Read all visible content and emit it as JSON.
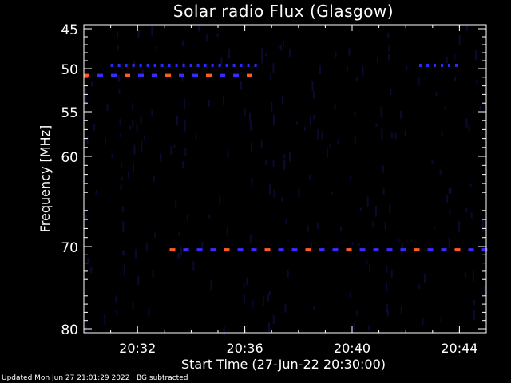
{
  "chart_data": {
    "type": "heatmap",
    "title": "Solar radio Flux (Glasgow)",
    "xlabel": "Start Time (27-Jun-22 20:30:00)",
    "ylabel": "Frequency [MHz]",
    "x_start_minutes": 0,
    "x_end_minutes": 15,
    "x_ticks": [
      {
        "minute": 2,
        "label": "20:32"
      },
      {
        "minute": 6,
        "label": "20:36"
      },
      {
        "minute": 10,
        "label": "20:40"
      },
      {
        "minute": 14,
        "label": "20:44"
      }
    ],
    "ylim": [
      45,
      80
    ],
    "y_ticks": [
      {
        "mhz": 45,
        "label": "45"
      },
      {
        "mhz": 50,
        "label": "50"
      },
      {
        "mhz": 55,
        "label": "55"
      },
      {
        "mhz": 60,
        "label": "60"
      },
      {
        "mhz": 70,
        "label": "70"
      },
      {
        "mhz": 80,
        "label": "80"
      }
    ],
    "features": [
      {
        "name": "51 MHz intermittent emission",
        "mhz": 50.8,
        "from_min": 0.0,
        "to_min": 6.5,
        "level": "strong"
      },
      {
        "name": "49.6 MHz band",
        "mhz": 49.6,
        "from_min": 1.0,
        "to_min": 6.5,
        "level": "medium"
      },
      {
        "name": "49.6 MHz band (late)",
        "mhz": 49.6,
        "from_min": 12.5,
        "to_min": 14.0,
        "level": "medium"
      },
      {
        "name": "70.4 MHz persistent emission",
        "mhz": 70.4,
        "from_min": 3.2,
        "to_min": 15.0,
        "level": "strong"
      }
    ]
  },
  "footer": {
    "updated": "Updated Mon Jun 27 21:01:29 2022",
    "note": "BG subtracted"
  },
  "colors": {
    "background": "#000000",
    "axes": "#ffffff",
    "text": "#ffffff",
    "strong": "#ff5a2a",
    "medium": "#2a2aff",
    "faint": "#0a0a30"
  }
}
